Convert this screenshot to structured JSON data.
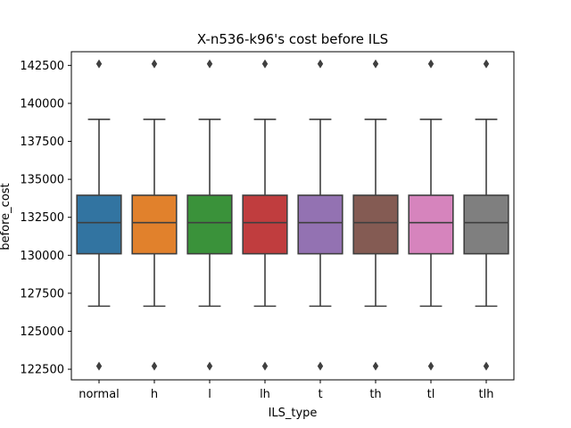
{
  "chart_data": {
    "type": "box",
    "title": "X-n536-k96's cost before ILS",
    "xlabel": "ILS_type",
    "ylabel": "before_cost",
    "categories": [
      "normal",
      "h",
      "l",
      "lh",
      "t",
      "th",
      "tl",
      "tlh"
    ],
    "colors": [
      "#3274a1",
      "#e1812c",
      "#3a923a",
      "#c03d3e",
      "#9372b2",
      "#845b53",
      "#d684bd",
      "#7f7f7f"
    ],
    "ylim": [
      121800,
      143400
    ],
    "yticks": [
      122500,
      125000,
      127500,
      130000,
      132500,
      135000,
      137500,
      140000,
      142500
    ],
    "ytick_labels": [
      "122500",
      "125000",
      "127500",
      "130000",
      "132500",
      "135000",
      "137500",
      "140000",
      "142500"
    ],
    "grid": false,
    "legend": "none",
    "series": [
      {
        "category": "normal",
        "whisker_low": 126650,
        "q1": 130100,
        "median": 132150,
        "q3": 133950,
        "whisker_high": 138950,
        "outliers": [
          122700,
          142600
        ]
      },
      {
        "category": "h",
        "whisker_low": 126650,
        "q1": 130100,
        "median": 132150,
        "q3": 133950,
        "whisker_high": 138950,
        "outliers": [
          122700,
          142600
        ]
      },
      {
        "category": "l",
        "whisker_low": 126650,
        "q1": 130100,
        "median": 132150,
        "q3": 133950,
        "whisker_high": 138950,
        "outliers": [
          122700,
          142600
        ]
      },
      {
        "category": "lh",
        "whisker_low": 126650,
        "q1": 130100,
        "median": 132150,
        "q3": 133950,
        "whisker_high": 138950,
        "outliers": [
          122700,
          142600
        ]
      },
      {
        "category": "t",
        "whisker_low": 126650,
        "q1": 130100,
        "median": 132150,
        "q3": 133950,
        "whisker_high": 138950,
        "outliers": [
          122700,
          142600
        ]
      },
      {
        "category": "th",
        "whisker_low": 126650,
        "q1": 130100,
        "median": 132150,
        "q3": 133950,
        "whisker_high": 138950,
        "outliers": [
          122700,
          142600
        ]
      },
      {
        "category": "tl",
        "whisker_low": 126650,
        "q1": 130100,
        "median": 132150,
        "q3": 133950,
        "whisker_high": 138950,
        "outliers": [
          122700,
          142600
        ]
      },
      {
        "category": "tlh",
        "whisker_low": 126650,
        "q1": 130100,
        "median": 132150,
        "q3": 133950,
        "whisker_high": 138950,
        "outliers": [
          122700,
          142600
        ]
      }
    ]
  }
}
